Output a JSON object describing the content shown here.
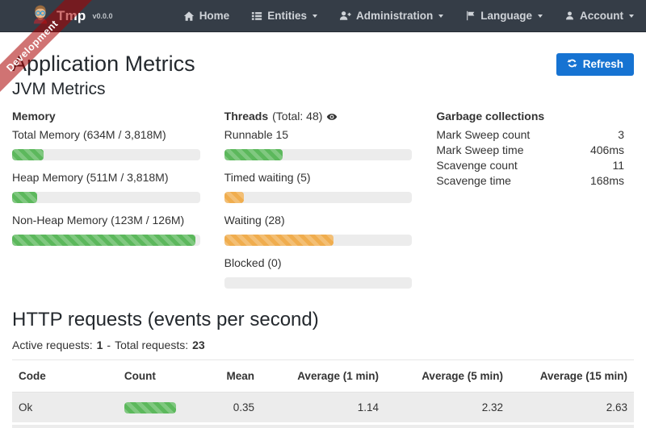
{
  "navbar": {
    "brand": {
      "title": "Tmp",
      "version": "v0.0.0"
    },
    "items": [
      {
        "label": "Home",
        "icon": "home-icon",
        "caret": false
      },
      {
        "label": "Entities",
        "icon": "entities-list-icon",
        "caret": true
      },
      {
        "label": "Administration",
        "icon": "user-plus-icon",
        "caret": true
      },
      {
        "label": "Language",
        "icon": "flag-icon",
        "caret": true
      },
      {
        "label": "Account",
        "icon": "user-icon",
        "caret": true
      }
    ]
  },
  "ribbon": {
    "label": "Development"
  },
  "page": {
    "title": "Application Metrics",
    "refresh_label": "Refresh"
  },
  "jvm": {
    "title": "JVM Metrics",
    "memory": {
      "title": "Memory",
      "metrics": [
        {
          "label": "Total Memory (634M / 3,818M)",
          "percent": 16.6,
          "color": "green"
        },
        {
          "label": "Heap Memory (511M / 3,818M)",
          "percent": 13.4,
          "color": "green"
        },
        {
          "label": "Non-Heap Memory (123M / 126M)",
          "percent": 97.6,
          "color": "green"
        }
      ]
    },
    "threads": {
      "title": "Threads",
      "total_label": "(Total: 48)",
      "metrics": [
        {
          "label": "Runnable 15",
          "percent": 31.25,
          "color": "green"
        },
        {
          "label": "Timed waiting (5)",
          "percent": 10.4,
          "color": "orange"
        },
        {
          "label": "Waiting (28)",
          "percent": 58.3,
          "color": "orange"
        },
        {
          "label": "Blocked (0)",
          "percent": 0,
          "color": "orange"
        }
      ]
    },
    "gc": {
      "title": "Garbage collections",
      "rows": [
        {
          "label": "Mark Sweep count",
          "value": "3"
        },
        {
          "label": "Mark Sweep time",
          "value": "406ms"
        },
        {
          "label": "Scavenge count",
          "value": "11"
        },
        {
          "label": "Scavenge time",
          "value": "168ms"
        }
      ]
    }
  },
  "http": {
    "title": "HTTP requests (events per second)",
    "active_label": "Active requests:",
    "active_value": "1",
    "dash": "-",
    "total_label": "Total requests:",
    "total_value": "23",
    "table": {
      "headers": [
        "Code",
        "Count",
        "Mean",
        "Average (1 min)",
        "Average (5 min)",
        "Average (15 min)"
      ],
      "rows": [
        {
          "code": "Ok",
          "count_percent": 100,
          "mean": "0.35",
          "avg1": "1.14",
          "avg5": "2.32",
          "avg15": "2.63"
        }
      ]
    }
  },
  "colors": {
    "navbar_bg": "#353d47",
    "accent_blue": "#1673d2",
    "success_green": "#5cb85c",
    "warning_orange": "#f0ad4e",
    "ribbon_red": "rgba(170,0,0,0.55)",
    "track_gray": "#ececec"
  }
}
